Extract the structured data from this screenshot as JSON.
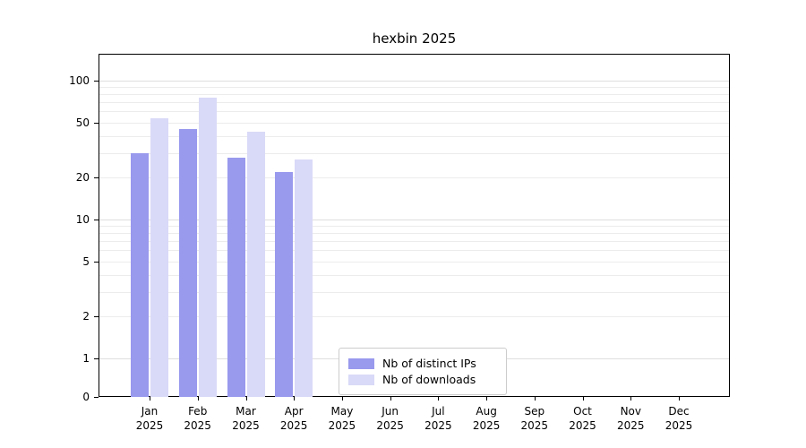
{
  "figure": {
    "title": "hexbin 2025"
  },
  "chart_data": {
    "type": "bar",
    "title": "hexbin 2025",
    "year": "2025",
    "months": [
      "Jan",
      "Feb",
      "Mar",
      "Apr",
      "May",
      "Jun",
      "Jul",
      "Aug",
      "Sep",
      "Oct",
      "Nov",
      "Dec"
    ],
    "categories": [
      "Jan 2025",
      "Feb 2025",
      "Mar 2025",
      "Apr 2025",
      "May 2025",
      "Jun 2025",
      "Jul 2025",
      "Aug 2025",
      "Sep 2025",
      "Oct 2025",
      "Nov 2025",
      "Dec 2025"
    ],
    "series": [
      {
        "name": "Nb of distinct IPs",
        "color": "#9999ee",
        "values": [
          30,
          45,
          28,
          22,
          0,
          0,
          0,
          0,
          0,
          0,
          0,
          0
        ]
      },
      {
        "name": "Nb of downloads",
        "color": "#d9d9f8",
        "values": [
          54,
          75,
          43,
          27,
          0,
          0,
          0,
          0,
          0,
          0,
          0,
          0
        ]
      }
    ],
    "yscale": "symlog",
    "yticks": [
      0,
      1,
      2,
      5,
      10,
      20,
      50,
      100
    ],
    "ylim": [
      0,
      100
    ],
    "xlabel": "",
    "ylabel": "",
    "grid": "horizontal log gridlines (major + minor)",
    "legend_position": "lower center",
    "colors": {
      "background": "#ffffff",
      "gridline": "#ececec",
      "axis": "#000000"
    }
  }
}
